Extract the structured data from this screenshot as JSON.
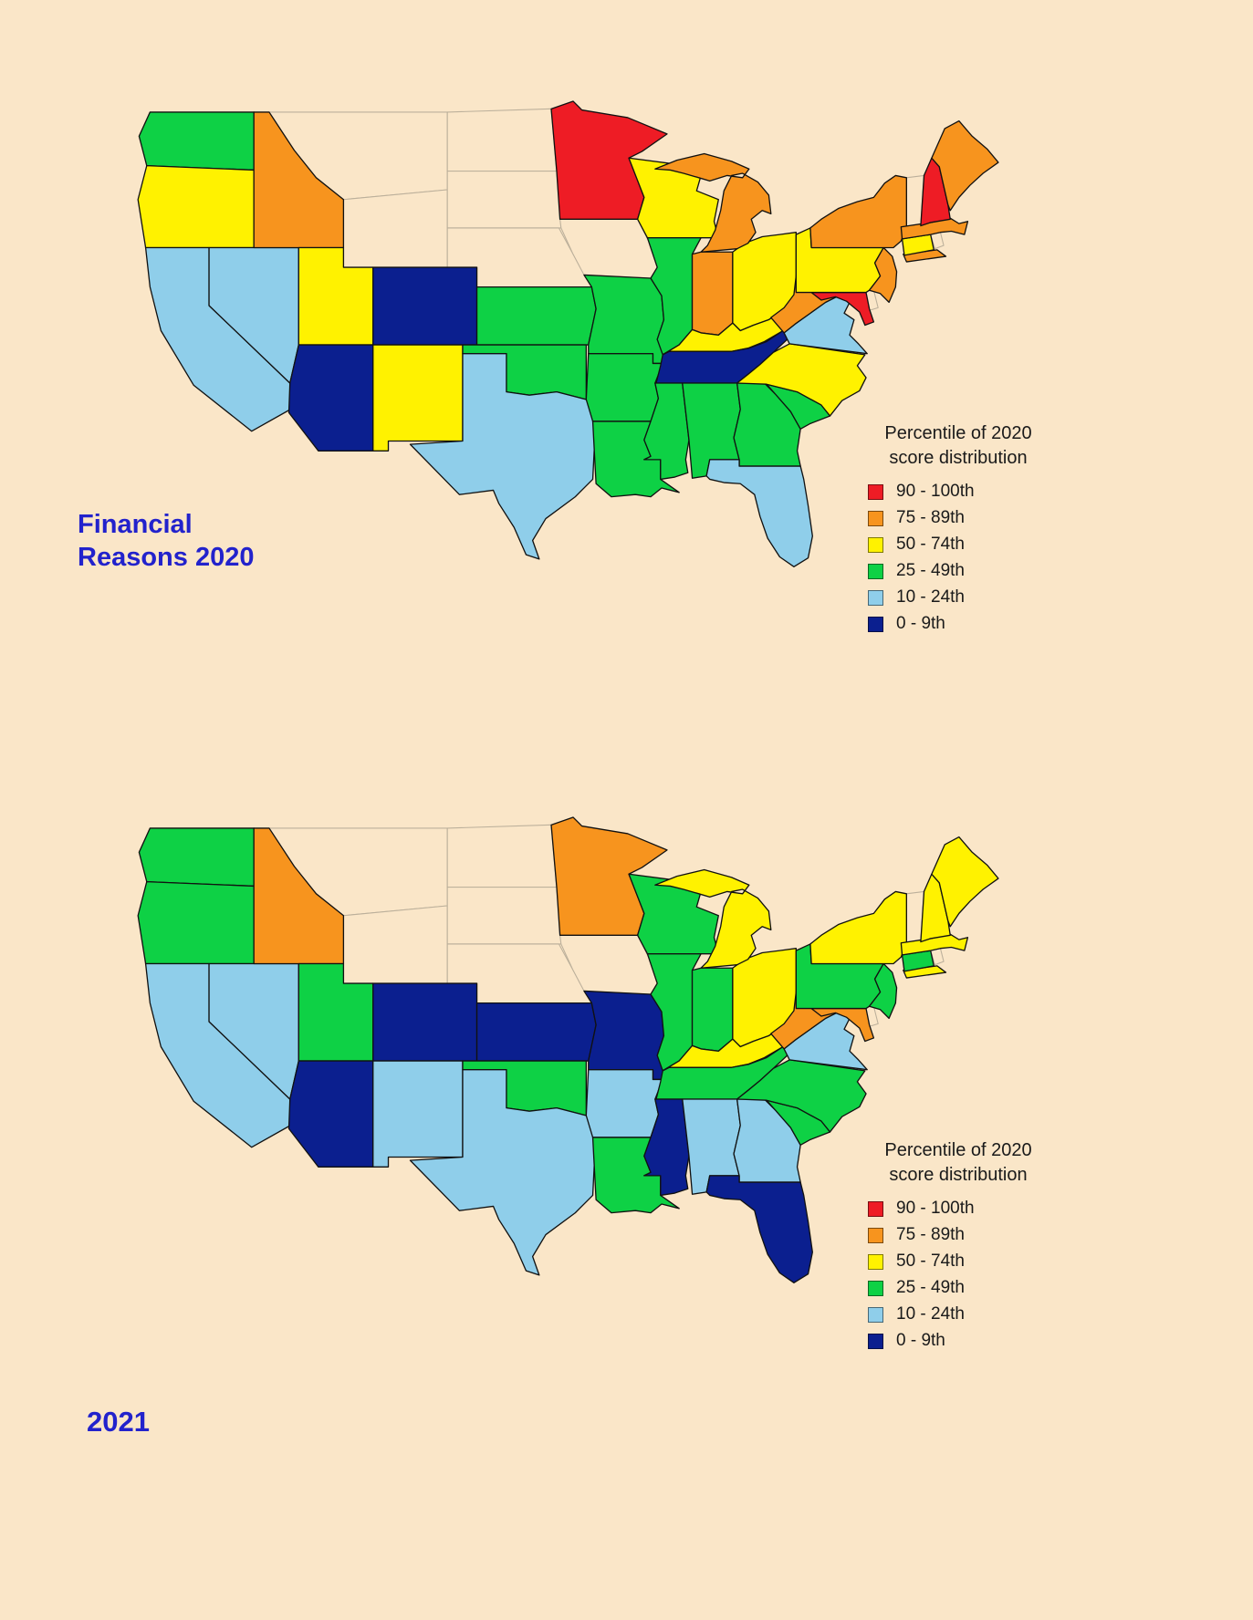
{
  "page": {
    "background": "#FAE6C8",
    "title_color": "#2222CC",
    "text_color": "#1A1A1A"
  },
  "titles": {
    "map1_line1": "Financial",
    "map1_line2": "Reasons 2020",
    "map2": "2021"
  },
  "legend": {
    "title_line1": "Percentile of 2020",
    "title_line2": "score distribution",
    "swatch_border": "rgba(0,0,0,0.5)",
    "no_data_fill": "#FAE6C8",
    "no_data_border": "#BCB09B",
    "state_border": "#111111",
    "items": [
      {
        "key": "p90_100",
        "label": "90 - 100th",
        "color": "#EE1C25"
      },
      {
        "key": "p75_89",
        "label": "75 - 89th",
        "color": "#F7941E"
      },
      {
        "key": "p50_74",
        "label": "50 - 74th",
        "color": "#FFF200"
      },
      {
        "key": "p25_49",
        "label": "25 - 49th",
        "color": "#0ED145"
      },
      {
        "key": "p10_24",
        "label": "10 - 24th",
        "color": "#8FCEEA"
      },
      {
        "key": "p0_9",
        "label": "0 - 9th",
        "color": "#0B1F8F"
      }
    ]
  },
  "maps": [
    {
      "name": "financial-reasons-2020",
      "states": {
        "WA": "p25_49",
        "OR": "p50_74",
        "CA": "p10_24",
        "NV": "p10_24",
        "ID": "p75_89",
        "MT": "no_data",
        "WY": "no_data",
        "UT": "p50_74",
        "CO": "p0_9",
        "AZ": "p0_9",
        "NM": "p50_74",
        "ND": "no_data",
        "SD": "no_data",
        "NE": "no_data",
        "KS": "p25_49",
        "OK": "p25_49",
        "TX": "p10_24",
        "MN": "p90_100",
        "IA": "no_data",
        "MO": "p25_49",
        "AR": "p25_49",
        "LA": "p25_49",
        "WI": "p50_74",
        "IL": "p25_49",
        "MI": "p75_89",
        "IN": "p75_89",
        "OH": "p50_74",
        "KY": "p50_74",
        "TN": "p0_9",
        "MS": "p25_49",
        "AL": "p25_49",
        "GA": "p25_49",
        "FL": "p10_24",
        "SC": "p25_49",
        "NC": "p50_74",
        "VA": "p10_24",
        "WV": "p75_89",
        "MD": "p90_100",
        "DE": "no_data",
        "PA": "p50_74",
        "NJ": "p75_89",
        "NY": "p75_89",
        "CT": "p50_74",
        "RI": "no_data",
        "MA": "p75_89",
        "VT": "no_data",
        "NH": "p90_100",
        "ME": "p75_89"
      }
    },
    {
      "name": "2021",
      "states": {
        "WA": "p25_49",
        "OR": "p25_49",
        "CA": "p10_24",
        "NV": "p10_24",
        "ID": "p75_89",
        "MT": "no_data",
        "WY": "no_data",
        "UT": "p25_49",
        "CO": "p0_9",
        "AZ": "p0_9",
        "NM": "p10_24",
        "ND": "no_data",
        "SD": "no_data",
        "NE": "no_data",
        "KS": "p0_9",
        "OK": "p25_49",
        "TX": "p10_24",
        "MN": "p75_89",
        "IA": "no_data",
        "MO": "p0_9",
        "AR": "p10_24",
        "LA": "p25_49",
        "WI": "p25_49",
        "IL": "p25_49",
        "MI": "p50_74",
        "IN": "p25_49",
        "OH": "p50_74",
        "KY": "p50_74",
        "TN": "p25_49",
        "MS": "p0_9",
        "AL": "p10_24",
        "GA": "p10_24",
        "FL": "p0_9",
        "SC": "p25_49",
        "NC": "p25_49",
        "VA": "p10_24",
        "WV": "p75_89",
        "MD": "p75_89",
        "DE": "no_data",
        "PA": "p25_49",
        "NJ": "p25_49",
        "NY": "p50_74",
        "CT": "p25_49",
        "RI": "no_data",
        "MA": "p50_74",
        "VT": "no_data",
        "NH": "p50_74",
        "ME": "p50_74"
      }
    }
  ]
}
